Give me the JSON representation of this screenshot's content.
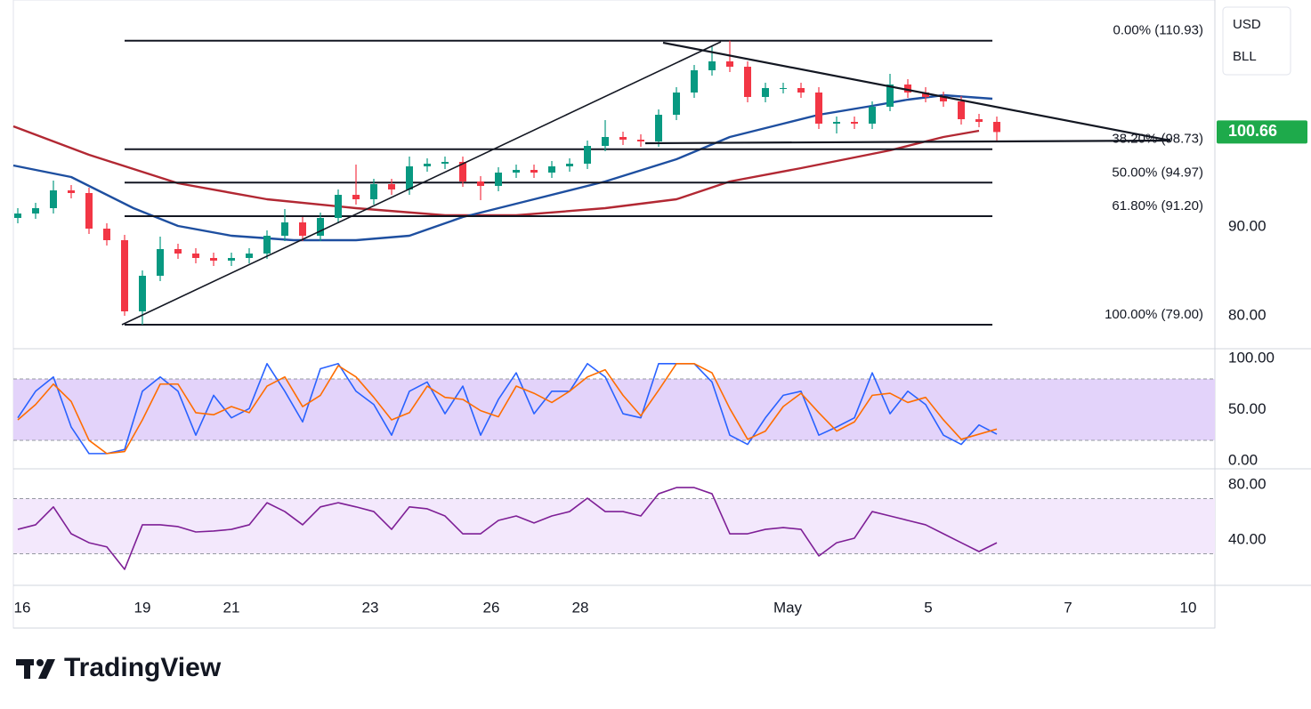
{
  "brand": "TradingView",
  "chart_data": [
    {
      "type": "candlestick",
      "currency": "USD",
      "symbol": "BLL",
      "last_price": 100.66,
      "last_color": "#1eaa4b",
      "up_color": "#089981",
      "down_color": "#f23645",
      "xlim": [
        0,
        135
      ],
      "xticks": [
        {
          "value": 1.0,
          "label": "16"
        },
        {
          "value": 14.5,
          "label": "19"
        },
        {
          "value": 24.5,
          "label": "21"
        },
        {
          "value": 40.1,
          "label": "23"
        },
        {
          "value": 53.7,
          "label": "26"
        },
        {
          "value": 63.7,
          "label": "28"
        },
        {
          "value": 87.0,
          "label": "May"
        },
        {
          "value": 102.8,
          "label": "5"
        },
        {
          "value": 118.5,
          "label": "7"
        },
        {
          "value": 132.0,
          "label": "10"
        }
      ],
      "ylim": [
        76.3,
        115.5
      ],
      "yticks": [
        {
          "value": 80,
          "label": "80.00"
        },
        {
          "value": 90,
          "label": "90.00"
        }
      ],
      "fib_levels": [
        {
          "value": 110.93,
          "label": "0.00% (110.93)"
        },
        {
          "value": 98.73,
          "label": "38.20% (98.73)"
        },
        {
          "value": 94.97,
          "label": "50.00% (94.97)"
        },
        {
          "value": 91.2,
          "label": "61.80% (91.20)"
        },
        {
          "value": 79.0,
          "label": "100.00% (79.00)"
        }
      ],
      "x": [
        0.5,
        2.5,
        4.5,
        6.5,
        8.5,
        10.5,
        12.5,
        14.5,
        16.5,
        18.5,
        20.5,
        22.5,
        24.5,
        26.5,
        28.5,
        30.5,
        32.5,
        34.5,
        36.5,
        38.5,
        40.5,
        42.5,
        44.5,
        46.5,
        48.5,
        50.5,
        52.5,
        54.5,
        56.5,
        58.5,
        60.5,
        62.5,
        64.5,
        66.5,
        68.5,
        70.5,
        72.5,
        74.5,
        76.5,
        78.5,
        80.5,
        82.5,
        84.5,
        86.5,
        88.5,
        90.5,
        92.5,
        94.5,
        96.5,
        98.5,
        100.5,
        102.5,
        104.5,
        106.5,
        108.5,
        110.5
      ],
      "open": [
        91.0,
        91.5,
        92.1,
        94.1,
        93.8,
        89.8,
        88.5,
        80.5,
        84.5,
        87.5,
        87.0,
        86.5,
        86.2,
        86.5,
        87.0,
        89.0,
        90.5,
        89.0,
        91.0,
        93.6,
        93.1,
        94.8,
        94.2,
        96.8,
        97.1,
        97.3,
        95.1,
        94.6,
        96.1,
        96.4,
        96.1,
        96.8,
        97.1,
        99.1,
        100.1,
        99.8,
        99.6,
        102.6,
        105.1,
        107.6,
        108.6,
        108.0,
        104.6,
        105.6,
        105.6,
        105.1,
        101.6,
        101.8,
        101.6,
        103.5,
        106.0,
        105.1,
        104.6,
        104.1,
        102.1,
        101.8
      ],
      "high": [
        92.1,
        92.7,
        95.2,
        94.7,
        94.4,
        90.4,
        89.1,
        85.1,
        88.9,
        88.1,
        87.6,
        87.1,
        87.1,
        87.6,
        89.6,
        92.0,
        91.1,
        91.6,
        94.2,
        97.0,
        95.4,
        95.4,
        97.9,
        97.7,
        97.9,
        97.9,
        95.7,
        96.7,
        97.0,
        97.0,
        97.4,
        97.7,
        99.7,
        102.0,
        100.7,
        100.4,
        103.2,
        105.7,
        108.2,
        110.3,
        110.93,
        108.6,
        106.2,
        106.2,
        106.2,
        105.7,
        102.4,
        102.4,
        104.1,
        107.2,
        106.6,
        105.7,
        105.2,
        104.7,
        102.7,
        102.4
      ],
      "low": [
        90.4,
        90.9,
        91.5,
        93.2,
        89.2,
        87.9,
        80.0,
        79.0,
        83.9,
        86.4,
        85.9,
        85.6,
        85.6,
        85.9,
        86.4,
        88.4,
        88.4,
        88.4,
        90.4,
        92.5,
        92.5,
        93.6,
        93.6,
        96.2,
        96.5,
        94.5,
        93.0,
        94.0,
        95.5,
        95.5,
        95.5,
        96.2,
        96.5,
        98.5,
        99.2,
        99.0,
        99.0,
        102.0,
        104.5,
        107.0,
        107.4,
        104.0,
        104.0,
        105.0,
        104.5,
        101.0,
        100.5,
        101.0,
        101.0,
        103.0,
        104.5,
        104.0,
        103.5,
        101.5,
        101.2,
        99.5
      ],
      "close": [
        91.5,
        92.1,
        94.1,
        93.8,
        89.8,
        88.5,
        80.5,
        84.5,
        87.5,
        87.0,
        86.5,
        86.2,
        86.5,
        87.0,
        89.0,
        90.5,
        89.0,
        91.0,
        93.6,
        93.1,
        94.8,
        94.2,
        96.8,
        97.1,
        97.3,
        95.1,
        94.6,
        96.1,
        96.4,
        96.1,
        96.8,
        97.1,
        99.1,
        100.1,
        99.8,
        99.6,
        102.6,
        105.1,
        107.6,
        108.6,
        108.0,
        104.6,
        105.6,
        105.6,
        105.1,
        101.6,
        101.8,
        101.6,
        103.5,
        106.0,
        105.1,
        104.6,
        104.1,
        102.1,
        101.8,
        100.66
      ],
      "series": [
        {
          "color": "#b22833",
          "x": [
            0,
            8.5,
            18.5,
            28.5,
            38.5,
            48.5,
            56.5,
            66.5,
            74.5,
            80.5,
            88.5,
            98.5,
            104.5,
            108.5
          ],
          "values": [
            101.3,
            98.1,
            94.9,
            93.1,
            92.1,
            91.3,
            91.3,
            92.1,
            93.1,
            95.1,
            96.6,
            98.6,
            100.1,
            100.8
          ]
        },
        {
          "color": "#1e4fa0",
          "x": [
            0,
            6.5,
            13.5,
            18.5,
            24.5,
            31.5,
            38.5,
            44.5,
            50.5,
            58.5,
            66.5,
            74.5,
            80.5,
            86.5,
            90.5,
            96.5,
            100.5,
            104.5,
            110
          ],
          "values": [
            96.9,
            95.6,
            92.1,
            90.1,
            89.0,
            88.5,
            88.5,
            89.0,
            91.1,
            93.1,
            95.1,
            97.6,
            100.1,
            101.6,
            102.6,
            103.6,
            104.3,
            104.8,
            104.4
          ]
        }
      ]
    },
    {
      "type": "line",
      "ylim": [
        -7.9,
        109.6
      ],
      "yticks": [
        {
          "value": 0,
          "label": "0.00"
        },
        {
          "value": 50,
          "label": "50.00"
        },
        {
          "value": 100,
          "label": "100.00"
        }
      ],
      "bands": [
        20,
        80
      ],
      "band_color": "#e3d3fa",
      "series": [
        {
          "color": "#2962ff",
          "values": [
            42,
            68,
            82,
            33,
            7,
            7,
            11,
            68,
            82,
            68,
            25,
            64,
            42,
            51,
            95,
            68,
            38,
            90,
            95,
            68,
            55,
            25,
            68,
            77,
            46,
            73,
            25,
            60,
            86,
            46,
            68,
            68,
            95,
            82,
            46,
            42,
            95,
            95,
            95,
            77,
            25,
            16,
            42,
            64,
            68,
            25,
            33,
            42,
            86,
            46,
            68,
            55,
            25,
            16,
            35,
            26
          ]
        },
        {
          "color": "#ff6d00",
          "values": [
            40,
            55,
            75,
            58,
            20,
            7,
            9,
            40,
            75,
            75,
            47,
            45,
            53,
            47,
            73,
            82,
            53,
            64,
            93,
            82,
            62,
            40,
            47,
            73,
            62,
            60,
            49,
            43,
            73,
            66,
            57,
            68,
            82,
            89,
            64,
            44,
            69,
            95,
            95,
            86,
            51,
            21,
            29,
            53,
            66,
            47,
            29,
            38,
            64,
            66,
            57,
            62,
            40,
            21,
            26,
            31
          ]
        }
      ]
    },
    {
      "type": "line",
      "ylim": [
        7.1,
        91.6
      ],
      "yticks": [
        {
          "value": 40,
          "label": "40.00"
        },
        {
          "value": 80,
          "label": "80.00"
        }
      ],
      "bands": [
        30,
        70
      ],
      "band_color": "#f3e8fc",
      "series": [
        {
          "color": "#7e1f96",
          "values": [
            47.7,
            51.0,
            64.0,
            44.5,
            38.0,
            35.0,
            18.7,
            51.0,
            51.0,
            49.7,
            45.8,
            46.5,
            47.7,
            51.0,
            67.0,
            60.6,
            51.0,
            64.0,
            67.0,
            64.0,
            60.6,
            47.7,
            64.0,
            62.6,
            57.4,
            44.5,
            44.5,
            54.2,
            57.4,
            52.3,
            57.4,
            60.6,
            70.3,
            60.6,
            60.6,
            57.4,
            73.5,
            78.0,
            78.0,
            73.5,
            44.5,
            44.5,
            47.7,
            49.0,
            47.7,
            28.4,
            38.0,
            41.3,
            60.6,
            57.4,
            54.2,
            51.0,
            44.5,
            38.0,
            31.6,
            38.0
          ]
        }
      ]
    }
  ]
}
